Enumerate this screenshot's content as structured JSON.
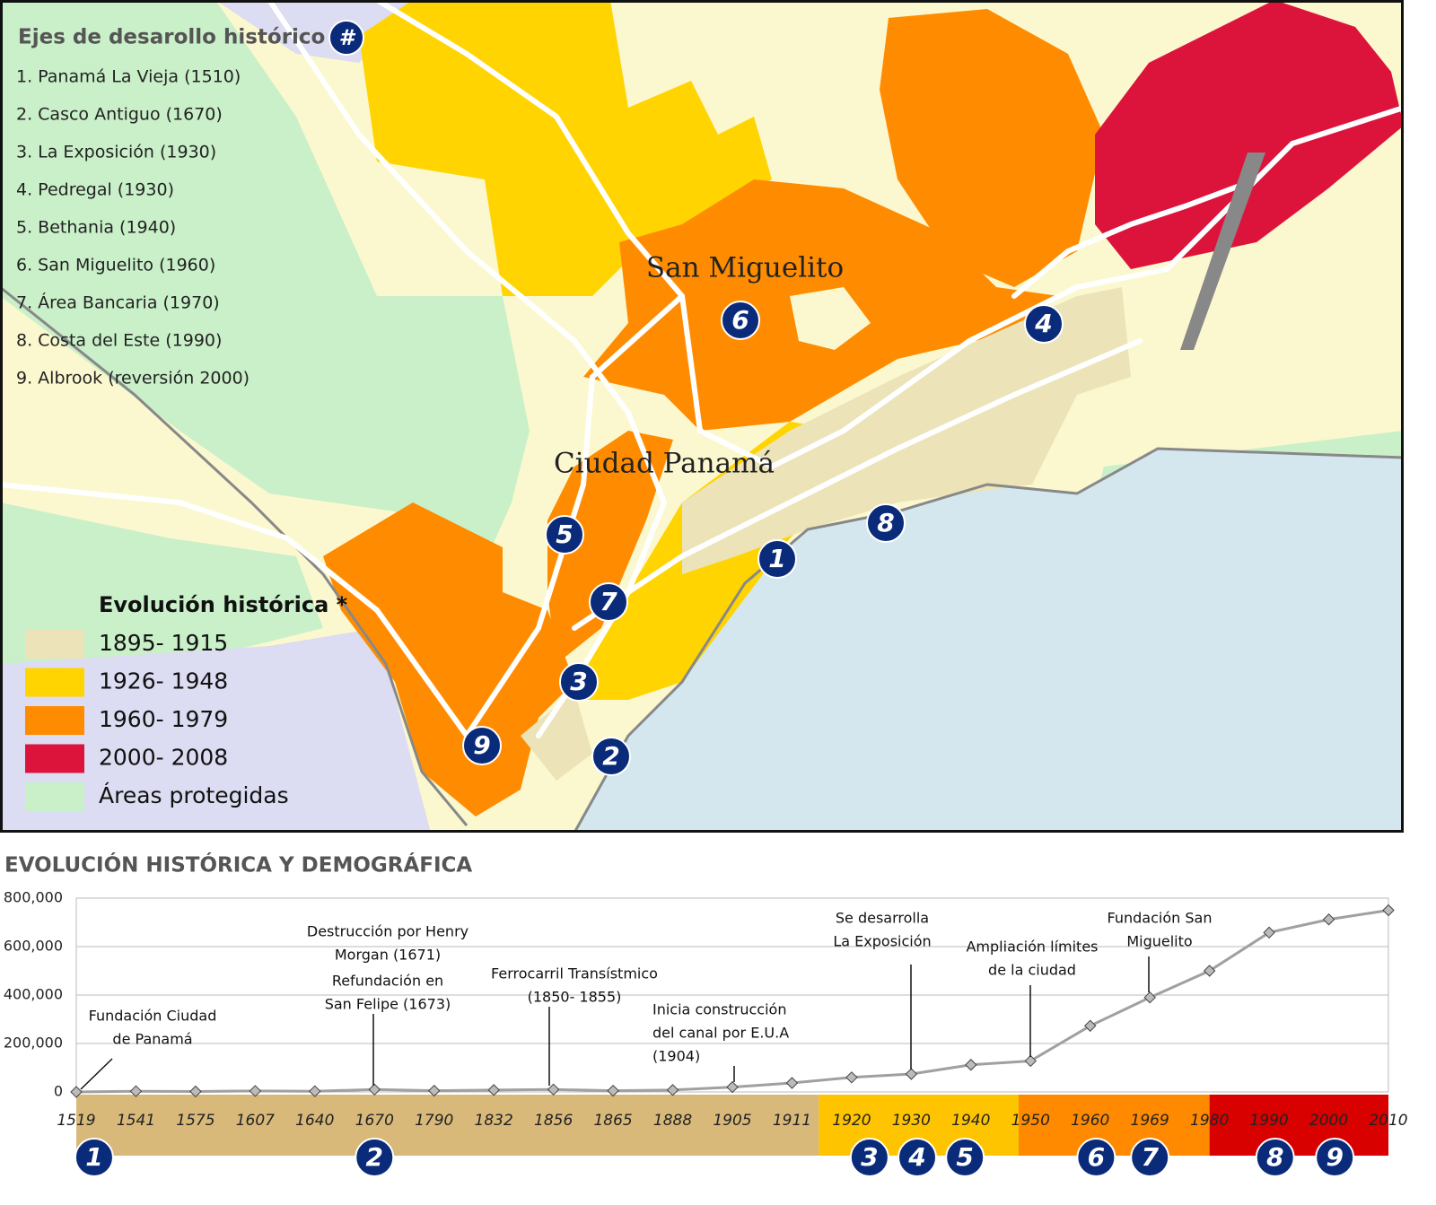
{
  "map": {
    "title": "Ejes de desarollo histórico",
    "title_badge": "#",
    "axes_list": [
      "1. Panamá La Vieja (1510)",
      "2. Casco Antiguo (1670)",
      "3. La Exposición (1930)",
      "4. Pedregal (1930)",
      "5. Bethania (1940)",
      "6. San Miguelito (1960)",
      "7. Área Bancaria (1970)",
      "8. Costa del Este (1990)",
      "9. Albrook (reversión 2000)"
    ],
    "places": [
      "San Miguelito",
      "Ciudad Panamá"
    ],
    "markers": [
      "1",
      "2",
      "3",
      "4",
      "5",
      "6",
      "7",
      "8",
      "9"
    ],
    "legend": {
      "title": "Evolución histórica *",
      "items": [
        {
          "label": "1895- 1915",
          "color": "#ece3b8"
        },
        {
          "label": "1926- 1948",
          "color": "#ffd400"
        },
        {
          "label": "1960- 1979",
          "color": "#ff8c00"
        },
        {
          "label": "2000- 2008",
          "color": "#dc143c"
        },
        {
          "label": "Áreas protegidas",
          "color": "#c9f0c8"
        }
      ]
    }
  },
  "chart_data": {
    "type": "line",
    "title": "EVOLUCIÓN HISTÓRICA Y DEMOGRÁFICA",
    "categories": [
      "1519",
      "1541",
      "1575",
      "1607",
      "1640",
      "1670",
      "1790",
      "1832",
      "1856",
      "1865",
      "1888",
      "1905",
      "1911",
      "1920",
      "1930",
      "1940",
      "1950",
      "1960",
      "1969",
      "1980",
      "1990",
      "2000",
      "2010"
    ],
    "values": [
      0,
      3000,
      2000,
      4000,
      3000,
      10000,
      5000,
      8000,
      10000,
      5000,
      8000,
      20000,
      37000,
      60000,
      74000,
      112000,
      128000,
      273000,
      390000,
      500000,
      658000,
      712000,
      750000
    ],
    "color": "#a0a0a0",
    "ylim": [
      0,
      800000
    ],
    "yticks": [
      0,
      {
        "value": 200000,
        "label": "200,000"
      },
      {
        "value": 400000,
        "label": "400,000"
      },
      {
        "value": 600000,
        "label": "600,000"
      },
      {
        "value": 800000,
        "label": "800,000"
      }
    ],
    "grid": true,
    "annotations": [
      {
        "lines": [
          "Fundación Ciudad",
          "de Panamá"
        ]
      },
      {
        "lines": [
          "Destrucción por Henry",
          "Morgan (1671)",
          "Refundación en",
          "San Felipe (1673)"
        ]
      },
      {
        "lines": [
          "Ferrocarril Transístmico",
          "(1850- 1855)"
        ]
      },
      {
        "lines": [
          "Inicia construcción",
          "del canal por E.U.A",
          "(1904)"
        ]
      },
      {
        "lines": [
          "Se desarrolla",
          "La Exposición"
        ]
      },
      {
        "lines": [
          "Ampliación límites",
          "de la ciudad"
        ]
      },
      {
        "lines": [
          "Fundación San",
          "Miguelito"
        ]
      }
    ],
    "periods": [
      {
        "color": "#d9b97a",
        "badges": [
          "1",
          "2"
        ]
      },
      {
        "color": "#ffc400",
        "badges": [
          "3",
          "4",
          "5"
        ]
      },
      {
        "color": "#ff8a00",
        "badges": [
          "6",
          "7"
        ]
      },
      {
        "color": "#d90000",
        "badges": [
          "8",
          "9"
        ]
      }
    ]
  }
}
